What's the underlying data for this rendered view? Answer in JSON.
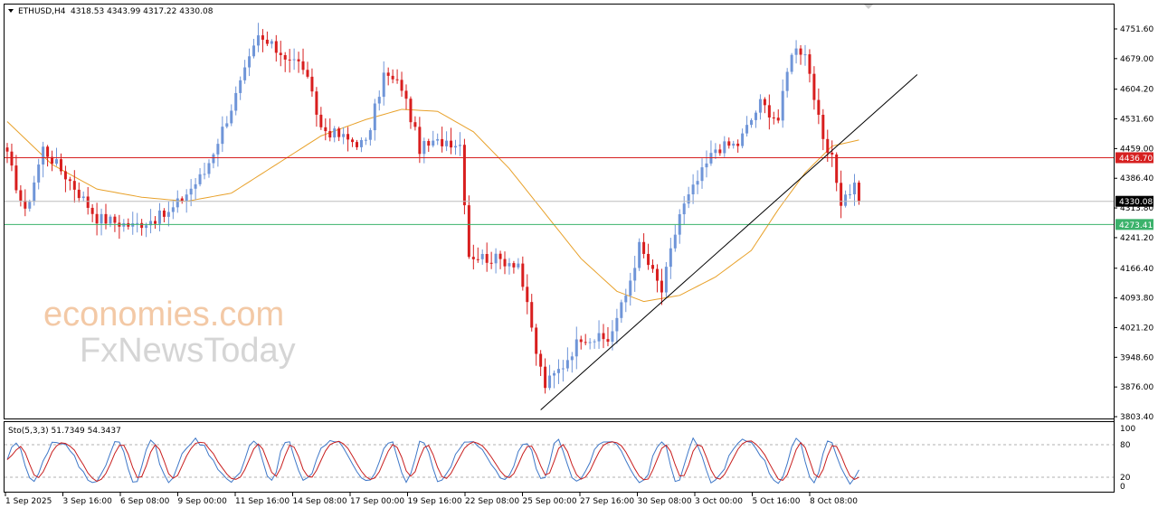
{
  "header": {
    "symbol": "ETHUSD,H4",
    "ohlc": "4318.53 4343.99 4317.22 4330.08"
  },
  "watermark": {
    "line1": "economies.com",
    "line2": "FxNewsToday"
  },
  "colors": {
    "bull": "#6f95d8",
    "bear": "#d81e1e",
    "ma": "#e8a12a",
    "resistance": "#d62020",
    "support": "#3bb26b",
    "stoch_main": "#3f78c8",
    "stoch_signal": "#c81e1e"
  },
  "chart_data": [
    {
      "type": "candlestick",
      "symbol": "ETHUSD",
      "timeframe": "H4",
      "ylim": [
        3803.4,
        4780
      ],
      "y_ticks": [
        "4751.60",
        "4679.00",
        "4604.20",
        "4531.60",
        "4459.00",
        "4386.40",
        "4313.80",
        "4241.20",
        "4166.40",
        "4093.80",
        "4021.20",
        "3948.60",
        "3876.00",
        "3803.40"
      ],
      "x_ticks": [
        "1 Sep 2025",
        "3 Sep 16:00",
        "6 Sep 08:00",
        "9 Sep 00:00",
        "11 Sep 16:00",
        "14 Sep 08:00",
        "17 Sep 00:00",
        "19 Sep 16:00",
        "22 Sep 08:00",
        "25 Sep 00:00",
        "27 Sep 16:00",
        "30 Sep 08:00",
        "3 Oct 00:00",
        "5 Oct 16:00",
        "8 Oct 08:00"
      ],
      "anchors": [
        {
          "i": 0,
          "p": 4440
        },
        {
          "i": 4,
          "p": 4300
        },
        {
          "i": 8,
          "p": 4460
        },
        {
          "i": 14,
          "p": 4380
        },
        {
          "i": 20,
          "p": 4290
        },
        {
          "i": 28,
          "p": 4270
        },
        {
          "i": 36,
          "p": 4300
        },
        {
          "i": 44,
          "p": 4400
        },
        {
          "i": 50,
          "p": 4560
        },
        {
          "i": 56,
          "p": 4730
        },
        {
          "i": 60,
          "p": 4700
        },
        {
          "i": 66,
          "p": 4660
        },
        {
          "i": 70,
          "p": 4510
        },
        {
          "i": 76,
          "p": 4480
        },
        {
          "i": 80,
          "p": 4470
        },
        {
          "i": 84,
          "p": 4640
        },
        {
          "i": 88,
          "p": 4610
        },
        {
          "i": 92,
          "p": 4460
        },
        {
          "i": 98,
          "p": 4480
        },
        {
          "i": 101,
          "p": 4470
        },
        {
          "i": 103,
          "p": 4200
        },
        {
          "i": 108,
          "p": 4190
        },
        {
          "i": 114,
          "p": 4180
        },
        {
          "i": 118,
          "p": 3960
        },
        {
          "i": 120,
          "p": 3880
        },
        {
          "i": 124,
          "p": 3930
        },
        {
          "i": 128,
          "p": 4000
        },
        {
          "i": 134,
          "p": 3990
        },
        {
          "i": 138,
          "p": 4100
        },
        {
          "i": 141,
          "p": 4220
        },
        {
          "i": 146,
          "p": 4110
        },
        {
          "i": 150,
          "p": 4300
        },
        {
          "i": 154,
          "p": 4380
        },
        {
          "i": 158,
          "p": 4460
        },
        {
          "i": 163,
          "p": 4470
        },
        {
          "i": 168,
          "p": 4570
        },
        {
          "i": 172,
          "p": 4530
        },
        {
          "i": 175,
          "p": 4700
        },
        {
          "i": 178,
          "p": 4700
        },
        {
          "i": 182,
          "p": 4470
        },
        {
          "i": 184,
          "p": 4430
        },
        {
          "i": 186,
          "p": 4330
        },
        {
          "i": 189,
          "p": 4370
        },
        {
          "i": 190,
          "p": 4330
        }
      ],
      "bars": 191,
      "moving_average": [
        {
          "i": 0,
          "p": 4525
        },
        {
          "i": 10,
          "p": 4420
        },
        {
          "i": 20,
          "p": 4360
        },
        {
          "i": 30,
          "p": 4340
        },
        {
          "i": 40,
          "p": 4330
        },
        {
          "i": 50,
          "p": 4350
        },
        {
          "i": 60,
          "p": 4420
        },
        {
          "i": 70,
          "p": 4490
        },
        {
          "i": 80,
          "p": 4530
        },
        {
          "i": 88,
          "p": 4555
        },
        {
          "i": 96,
          "p": 4550
        },
        {
          "i": 104,
          "p": 4500
        },
        {
          "i": 112,
          "p": 4410
        },
        {
          "i": 120,
          "p": 4300
        },
        {
          "i": 128,
          "p": 4190
        },
        {
          "i": 136,
          "p": 4110
        },
        {
          "i": 142,
          "p": 4085
        },
        {
          "i": 150,
          "p": 4100
        },
        {
          "i": 158,
          "p": 4145
        },
        {
          "i": 166,
          "p": 4210
        },
        {
          "i": 172,
          "p": 4310
        },
        {
          "i": 178,
          "p": 4400
        },
        {
          "i": 184,
          "p": 4465
        },
        {
          "i": 190,
          "p": 4480
        }
      ],
      "trendline": {
        "from": {
          "i": 119,
          "p": 3820
        },
        "to": {
          "i": 203,
          "p": 4640
        }
      },
      "resistance": {
        "price": 4436.7,
        "label": "4436.70"
      },
      "support": {
        "price": 4273.41,
        "label": "4273.41"
      },
      "current": {
        "price": 4330.08,
        "label": "4330.08"
      }
    },
    {
      "type": "line",
      "indicator": "Stochastic",
      "label": "Sto(5,3,3) 51.7349 54.3437",
      "ylim": [
        0,
        100
      ],
      "y_ticks": [
        "100",
        "80",
        "20",
        "0"
      ],
      "levels": [
        80,
        20
      ]
    }
  ]
}
